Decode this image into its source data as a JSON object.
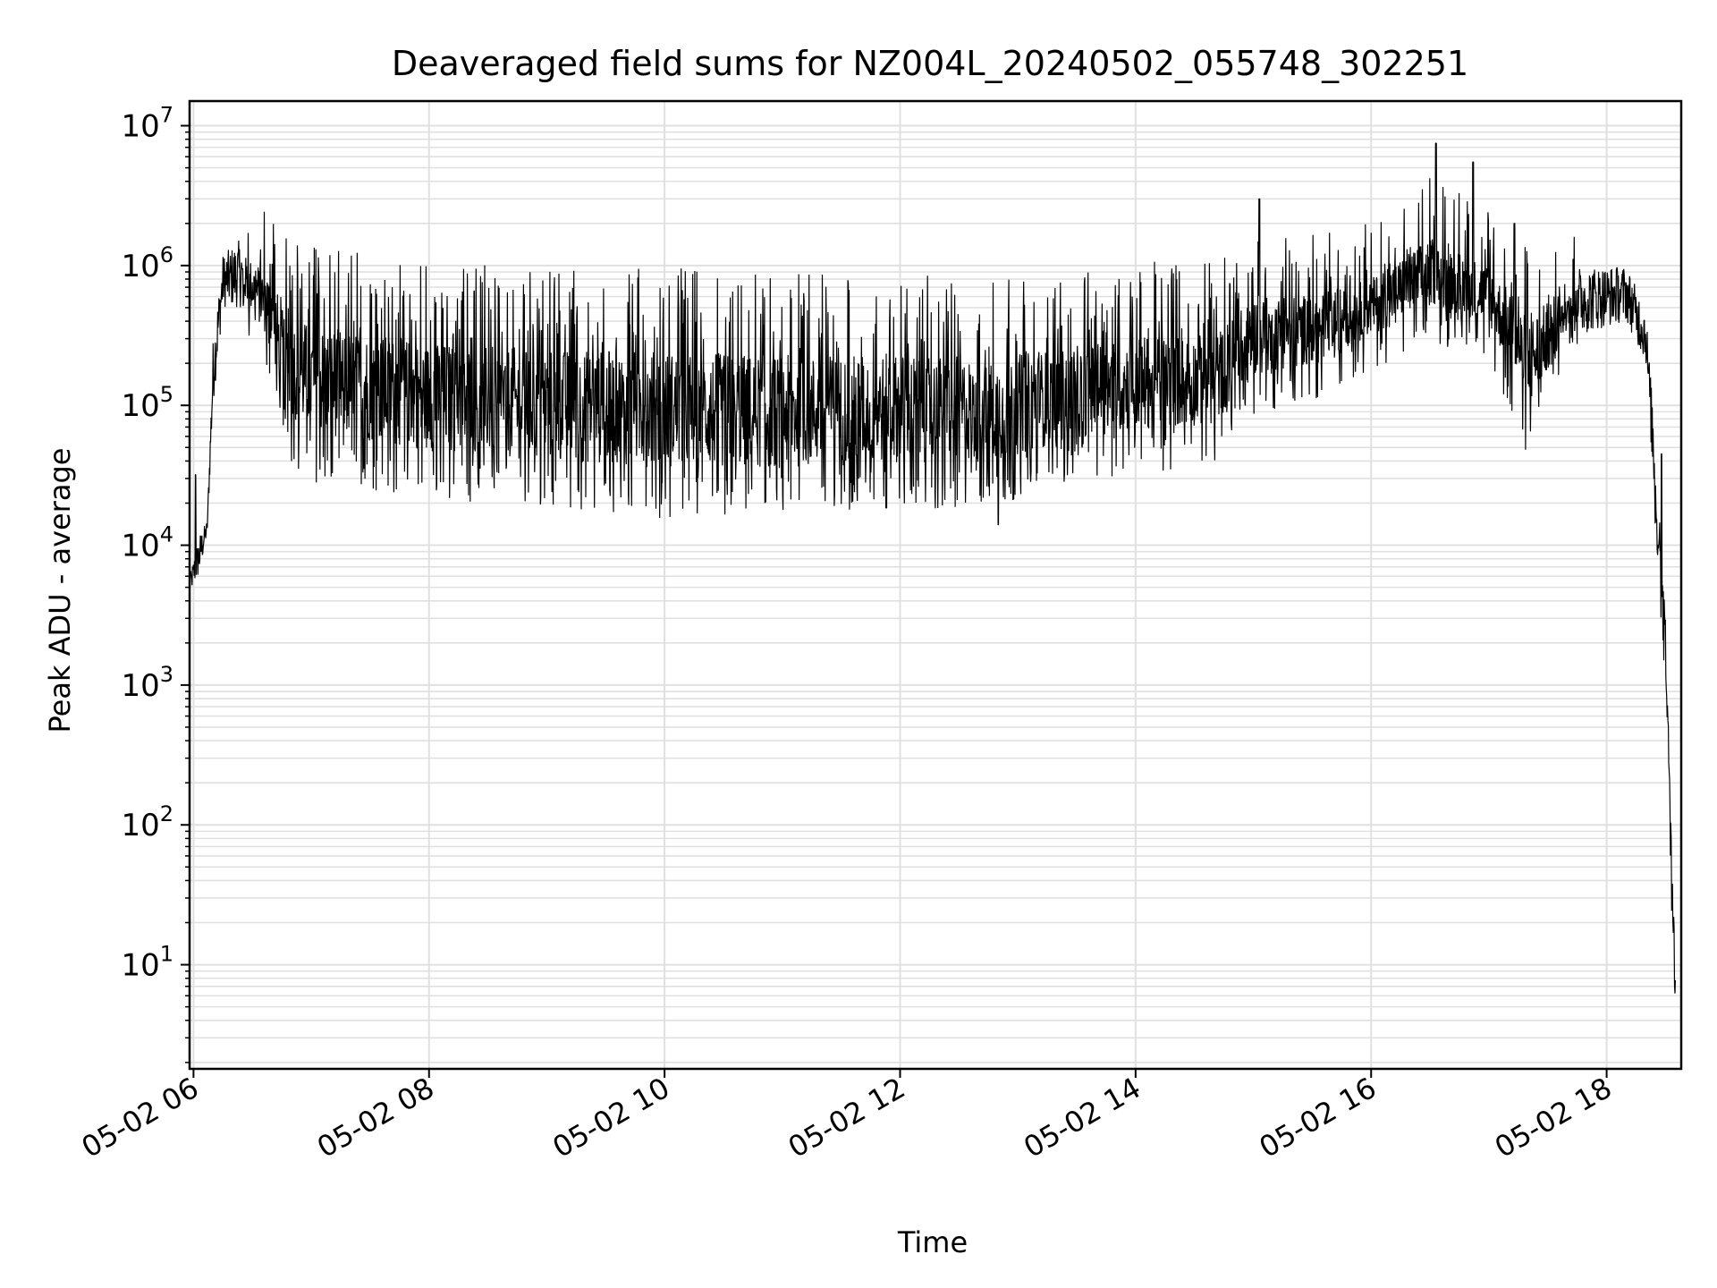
{
  "chart_data": {
    "type": "line",
    "title": "Deaveraged field sums for NZ004L_20240502_055748_302251",
    "xlabel": "Time",
    "ylabel": "Peak ADU - average",
    "yscale": "log",
    "ylim": [
      1.8,
      15000000
    ],
    "xlim": [
      "05-02 05:58",
      "05-02 18:38"
    ],
    "grid": true,
    "line_color": "#000000",
    "grid_color": "#e0e0e0",
    "x_ticks": [
      {
        "t": "05-02 06:00",
        "label": "05-02 06"
      },
      {
        "t": "05-02 08:00",
        "label": "05-02 08"
      },
      {
        "t": "05-02 10:00",
        "label": "05-02 10"
      },
      {
        "t": "05-02 12:00",
        "label": "05-02 12"
      },
      {
        "t": "05-02 14:00",
        "label": "05-02 14"
      },
      {
        "t": "05-02 16:00",
        "label": "05-02 16"
      },
      {
        "t": "05-02 18:00",
        "label": "05-02 18"
      }
    ],
    "y_ticks": [
      {
        "value": 10,
        "base": "10",
        "exp": "1"
      },
      {
        "value": 100,
        "base": "10",
        "exp": "2"
      },
      {
        "value": 1000,
        "base": "10",
        "exp": "3"
      },
      {
        "value": 10000,
        "base": "10",
        "exp": "4"
      },
      {
        "value": 100000,
        "base": "10",
        "exp": "5"
      },
      {
        "value": 1000000,
        "base": "10",
        "exp": "6"
      },
      {
        "value": 10000000,
        "base": "10",
        "exp": "7"
      }
    ],
    "series": [
      {
        "note": "dense noisy trace; envelope of typical values (low/high) per time",
        "envelope": [
          {
            "t": "05-02 05:58",
            "low": 4500,
            "high": 6000
          },
          {
            "t": "05-02 06:03",
            "low": 6000,
            "high": 12000
          },
          {
            "t": "05-02 06:07",
            "low": 12000,
            "high": 15000
          },
          {
            "t": "05-02 06:10",
            "low": 100000,
            "high": 300000
          },
          {
            "t": "05-02 06:15",
            "low": 500000,
            "high": 1200000
          },
          {
            "t": "05-02 06:25",
            "low": 500000,
            "high": 1600000
          },
          {
            "t": "05-02 06:40",
            "low": 200000,
            "high": 1500000
          },
          {
            "t": "05-02 06:45",
            "low": 60000,
            "high": 1000000
          },
          {
            "t": "05-02 07:00",
            "low": 40000,
            "high": 800000
          },
          {
            "t": "05-02 07:30",
            "low": 35000,
            "high": 700000
          },
          {
            "t": "05-02 08:00",
            "low": 30000,
            "high": 600000
          },
          {
            "t": "05-02 09:00",
            "low": 25000,
            "high": 550000
          },
          {
            "t": "05-02 10:00",
            "low": 22000,
            "high": 550000
          },
          {
            "t": "05-02 11:00",
            "low": 22000,
            "high": 500000
          },
          {
            "t": "05-02 12:00",
            "low": 25000,
            "high": 500000
          },
          {
            "t": "05-02 12:45",
            "low": 25000,
            "high": 450000
          },
          {
            "t": "05-02 13:30",
            "low": 40000,
            "high": 500000
          },
          {
            "t": "05-02 14:00",
            "low": 45000,
            "high": 600000
          },
          {
            "t": "05-02 14:40",
            "low": 50000,
            "high": 600000
          },
          {
            "t": "05-02 15:00",
            "low": 120000,
            "high": 1000000
          },
          {
            "t": "05-02 15:30",
            "low": 150000,
            "high": 1000000
          },
          {
            "t": "05-02 16:00",
            "low": 250000,
            "high": 1200000
          },
          {
            "t": "05-02 16:30",
            "low": 400000,
            "high": 2500000
          },
          {
            "t": "05-02 17:00",
            "low": 300000,
            "high": 1500000
          },
          {
            "t": "05-02 17:20",
            "low": 60000,
            "high": 800000
          },
          {
            "t": "05-02 17:40",
            "low": 300000,
            "high": 1000000
          },
          {
            "t": "05-02 18:10",
            "low": 400000,
            "high": 1000000
          },
          {
            "t": "05-02 18:20",
            "low": 200000,
            "high": 500000
          },
          {
            "t": "05-02 18:25",
            "low": 15000,
            "high": 50000
          },
          {
            "t": "05-02 18:30",
            "low": 1000,
            "high": 5000
          },
          {
            "t": "05-02 18:35",
            "low": 3.8,
            "high": 10
          }
        ],
        "spikes": [
          {
            "t": "05-02 06:01",
            "value": 32000
          },
          {
            "t": "05-02 12:50",
            "value": 14000
          },
          {
            "t": "05-02 15:03",
            "value": 3000000
          },
          {
            "t": "05-02 16:33",
            "value": 7500000
          },
          {
            "t": "05-02 16:52",
            "value": 5500000
          },
          {
            "t": "05-02 17:13",
            "value": 2000000
          },
          {
            "t": "05-02 18:28",
            "value": 45000
          }
        ]
      }
    ]
  }
}
